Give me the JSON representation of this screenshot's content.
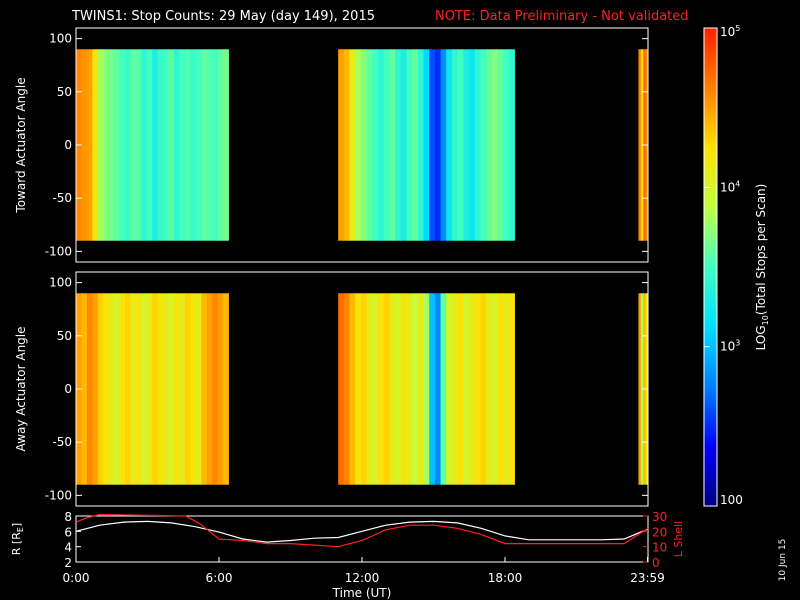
{
  "header": {
    "title": "TWINS1: Stop Counts: 29 May (day 149), 2015",
    "note": "NOTE: Data Preliminary - Not validated"
  },
  "colors": {
    "background": "#000000",
    "foreground": "#ffffff",
    "note": "#ff2020",
    "lshell_line": "#ff2020",
    "r_line": "#ffffff"
  },
  "colorbar": {
    "label_main": "LOG",
    "label_sub": "10",
    "label_rest": "(Total Stops per Scan)",
    "tick_labels": [
      "100",
      "10",
      "10",
      "10"
    ],
    "tick_exps": [
      "",
      "3",
      "4",
      "5"
    ],
    "range_log10": [
      2,
      5
    ],
    "colormap": [
      "#000080",
      "#0000ff",
      "#0080ff",
      "#00e0ff",
      "#40ffc0",
      "#c0ff40",
      "#ffe000",
      "#ff8000",
      "#ff2000"
    ]
  },
  "datestamp": "10 Jun 15",
  "chart_data": [
    {
      "type": "heatmap",
      "ylabel": "Toward Actuator Angle",
      "ylim": [
        -110,
        110
      ],
      "yticks": [
        100,
        50,
        0,
        -50,
        -100
      ],
      "ytick_labels": [
        "100",
        "50",
        "0",
        "-50",
        "-100"
      ],
      "xlim_hours": [
        0,
        24
      ],
      "angle_range": [
        -90,
        90
      ],
      "gaps_hours": [
        [
          6.4,
          11.0
        ],
        [
          18.4,
          23.6
        ]
      ],
      "segments": [
        {
          "start_h": 0.0,
          "end_h": 6.4,
          "log_counts": [
            4.6,
            4.55,
            4.5,
            4.2,
            3.8,
            3.7,
            3.65,
            3.6,
            3.5,
            3.45,
            3.6,
            3.55,
            3.4,
            3.5,
            3.3,
            3.45,
            3.5,
            3.6,
            3.4,
            3.5,
            3.55,
            3.45,
            3.5,
            3.6,
            3.55,
            3.5,
            3.6,
            3.65
          ]
        },
        {
          "start_h": 11.0,
          "end_h": 18.4,
          "log_counts": [
            4.5,
            4.4,
            4.1,
            3.8,
            3.7,
            3.6,
            3.5,
            3.4,
            3.5,
            3.6,
            3.4,
            3.3,
            3.5,
            3.6,
            3.4,
            3.1,
            2.6,
            2.5,
            2.8,
            3.2,
            3.4,
            3.5,
            3.3,
            3.2,
            3.4,
            3.5,
            3.6,
            3.7,
            3.6,
            3.5,
            3.4
          ]
        },
        {
          "start_h": 23.6,
          "end_h": 24.0,
          "log_counts": [
            4.6,
            4.2,
            4.7,
            4.6
          ]
        }
      ]
    },
    {
      "type": "heatmap",
      "ylabel": "Away Actuator Angle",
      "ylim": [
        -110,
        110
      ],
      "yticks": [
        100,
        50,
        0,
        -50,
        -100
      ],
      "ytick_labels": [
        "100",
        "50",
        "0",
        "-50",
        "-100"
      ],
      "xlim_hours": [
        0,
        24
      ],
      "angle_range": [
        -90,
        90
      ],
      "gaps_hours": [
        [
          6.4,
          11.0
        ],
        [
          18.4,
          23.6
        ]
      ],
      "segments": [
        {
          "start_h": 0.0,
          "end_h": 6.4,
          "log_counts": [
            4.5,
            4.4,
            4.6,
            4.5,
            4.3,
            4.2,
            4.1,
            4.0,
            4.2,
            4.3,
            4.1,
            4.2,
            4.0,
            4.1,
            4.3,
            4.2,
            4.1,
            4.0,
            4.2,
            4.1,
            4.3,
            4.2,
            4.1,
            4.4,
            4.5,
            4.6,
            4.5,
            4.4
          ]
        },
        {
          "start_h": 11.0,
          "end_h": 18.4,
          "log_counts": [
            4.7,
            4.6,
            4.4,
            4.2,
            4.3,
            4.1,
            4.0,
            4.2,
            4.3,
            4.1,
            4.0,
            4.2,
            4.1,
            3.9,
            4.1,
            3.8,
            3.0,
            2.8,
            3.6,
            4.0,
            4.1,
            4.2,
            4.0,
            4.1,
            4.2,
            4.3,
            4.1,
            4.0,
            4.2,
            4.1,
            4.2
          ]
        },
        {
          "start_h": 23.6,
          "end_h": 24.0,
          "log_counts": [
            4.5,
            3.8,
            4.4,
            4.2
          ]
        }
      ]
    },
    {
      "type": "line",
      "xlabel": "Time (UT)",
      "xlim_hours": [
        0,
        24
      ],
      "xtick_hours": [
        0,
        6,
        12,
        18,
        23.98
      ],
      "xtick_labels": [
        "0:00",
        "6:00",
        "12:00",
        "18:00",
        "23:59"
      ],
      "left_axis": {
        "label": "R [R",
        "label_sub": "E",
        "label_close": "]",
        "ylim": [
          2,
          8
        ],
        "ticks": [
          "8",
          "6",
          "4",
          "2"
        ]
      },
      "right_axis": {
        "label": "L Shell",
        "ylim": [
          0,
          30
        ],
        "ticks": [
          "30",
          "20",
          "10",
          "0"
        ]
      },
      "series": [
        {
          "axis": "left",
          "x": [
            0,
            1,
            2,
            3,
            4,
            5,
            6,
            7,
            8,
            9,
            10,
            11,
            12,
            13,
            14,
            15,
            16,
            17,
            18,
            19,
            20,
            21,
            22,
            23,
            24
          ],
          "y": [
            6.0,
            6.8,
            7.2,
            7.3,
            7.1,
            6.6,
            5.9,
            5.0,
            4.6,
            4.8,
            5.1,
            5.2,
            6.0,
            6.8,
            7.2,
            7.3,
            7.1,
            6.4,
            5.4,
            4.9,
            4.9,
            4.9,
            4.9,
            5.0,
            6.3
          ]
        },
        {
          "axis": "right",
          "x": [
            0,
            0.5,
            1.0,
            4.6,
            5.2,
            6.0,
            7.0,
            8.0,
            9.0,
            10.0,
            11.0,
            12.0,
            13.0,
            14.0,
            15.0,
            16.0,
            17.0,
            18.0,
            19.0,
            20.0,
            21.0,
            22.0,
            23.0,
            24.0
          ],
          "y": [
            26,
            29,
            31,
            30,
            25,
            15,
            14,
            12,
            12,
            11,
            10,
            14,
            21,
            24,
            24,
            22,
            18,
            12,
            12,
            12,
            12,
            12,
            12,
            22
          ]
        }
      ]
    }
  ]
}
